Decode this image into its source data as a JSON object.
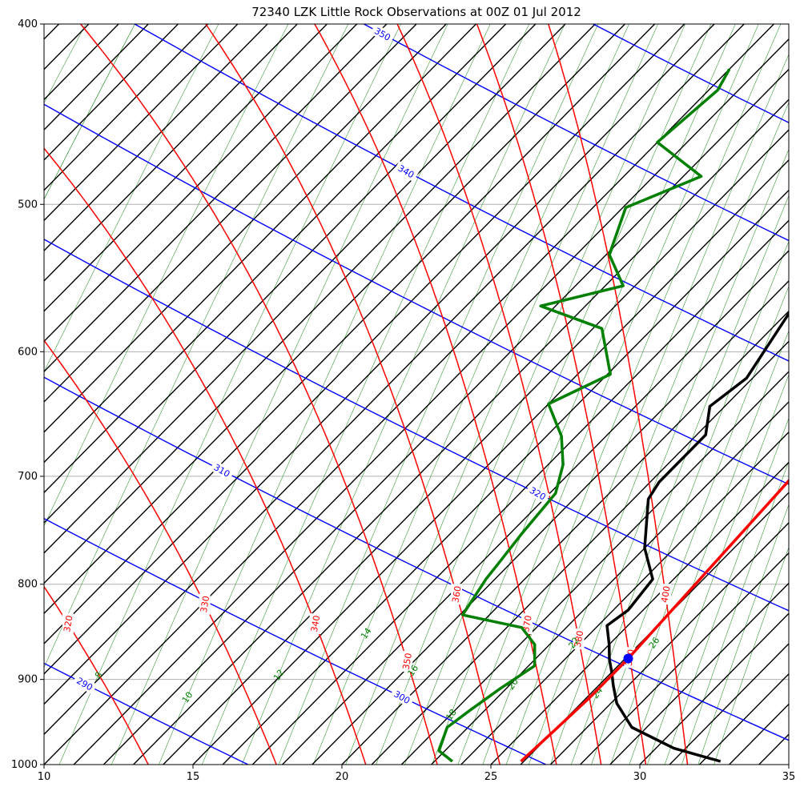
{
  "chart_data": {
    "type": "skew-t",
    "title": "72340 LZK Little Rock Observations at 00Z 01 Jul 2012",
    "xlabel": "",
    "ylabel": "",
    "xlim": [
      10,
      35
    ],
    "ylim": [
      1000,
      400
    ],
    "y_scale": "log",
    "grid": true,
    "x_ticks": [
      "10",
      "15",
      "20",
      "25",
      "30",
      "35"
    ],
    "y_ticks": [
      "400",
      "500",
      "600",
      "700",
      "800",
      "900",
      "1000"
    ],
    "temperature_profile": [
      [
        32.6,
        996
      ],
      [
        30.6,
        980
      ],
      [
        28.5,
        955
      ],
      [
        27.2,
        927
      ],
      [
        26.5,
        907
      ],
      [
        26.0,
        892
      ],
      [
        25.5,
        878
      ],
      [
        25.0,
        862
      ],
      [
        24.3,
        842
      ],
      [
        24.5,
        826
      ],
      [
        24.3,
        795
      ],
      [
        23.0,
        765
      ],
      [
        21.5,
        720
      ],
      [
        21.3,
        705
      ],
      [
        21.3,
        665
      ],
      [
        20.5,
        642
      ],
      [
        20.8,
        620
      ],
      [
        20.2,
        580
      ],
      [
        19.8,
        555
      ],
      [
        19.4,
        535
      ],
      [
        19.9,
        520
      ],
      [
        19.3,
        502
      ],
      [
        18.5,
        487
      ],
      [
        17.8,
        473
      ],
      [
        17.5,
        463
      ],
      [
        17.6,
        452
      ],
      [
        17.3,
        425
      ],
      [
        16.8,
        409
      ]
    ],
    "dewpoint_profile": [
      [
        23.6,
        996
      ],
      [
        22.8,
        983
      ],
      [
        22.3,
        955
      ],
      [
        22.5,
        935
      ],
      [
        22.8,
        910
      ],
      [
        23.2,
        885
      ],
      [
        22.5,
        862
      ],
      [
        21.5,
        844
      ],
      [
        19.1,
        831
      ],
      [
        18.7,
        795
      ],
      [
        18.6,
        780
      ],
      [
        18.4,
        752
      ],
      [
        18.2,
        715
      ],
      [
        17.5,
        690
      ],
      [
        16.5,
        666
      ],
      [
        15.0,
        640
      ],
      [
        16.1,
        617
      ],
      [
        14.3,
        583
      ],
      [
        11.5,
        567
      ],
      [
        13.6,
        553
      ],
      [
        12.1,
        532
      ],
      [
        11.1,
        502
      ],
      [
        12.6,
        483
      ],
      [
        10.0,
        463
      ],
      [
        10.3,
        434
      ],
      [
        10.0,
        423
      ]
    ],
    "parcel_profile": [
      [
        25.9,
        996
      ],
      [
        26.0,
        960
      ],
      [
        26.1,
        920
      ],
      [
        26.1,
        877
      ],
      [
        25.9,
        800
      ],
      [
        25.6,
        700
      ],
      [
        24.8,
        600
      ],
      [
        23.7,
        520
      ],
      [
        22.8,
        470
      ],
      [
        22.0,
        430
      ],
      [
        21.4,
        400
      ]
    ],
    "lcl": [
      26.1,
      877
    ],
    "dry_adiabat_labels": [
      "290",
      "300",
      "310",
      "320",
      "330",
      "340",
      "350"
    ],
    "moist_adiabat_labels": [
      "310",
      "320",
      "330",
      "340",
      "350",
      "360",
      "370",
      "380",
      "390",
      "400"
    ],
    "mixing_ratio_labels": [
      "3",
      "4",
      "6",
      "8",
      "10",
      "12",
      "14",
      "16",
      "18",
      "20",
      "22",
      "24",
      "26"
    ],
    "colors": {
      "temperature": "#000000",
      "dewpoint": "#008000",
      "parcel": "#ff0000",
      "isotherm": "#000000",
      "dry_adiabat": "#0000ff",
      "moist_adiabat": "#ff0000",
      "mixing_ratio": "#008000",
      "lcl_marker": "#0000ff"
    }
  }
}
